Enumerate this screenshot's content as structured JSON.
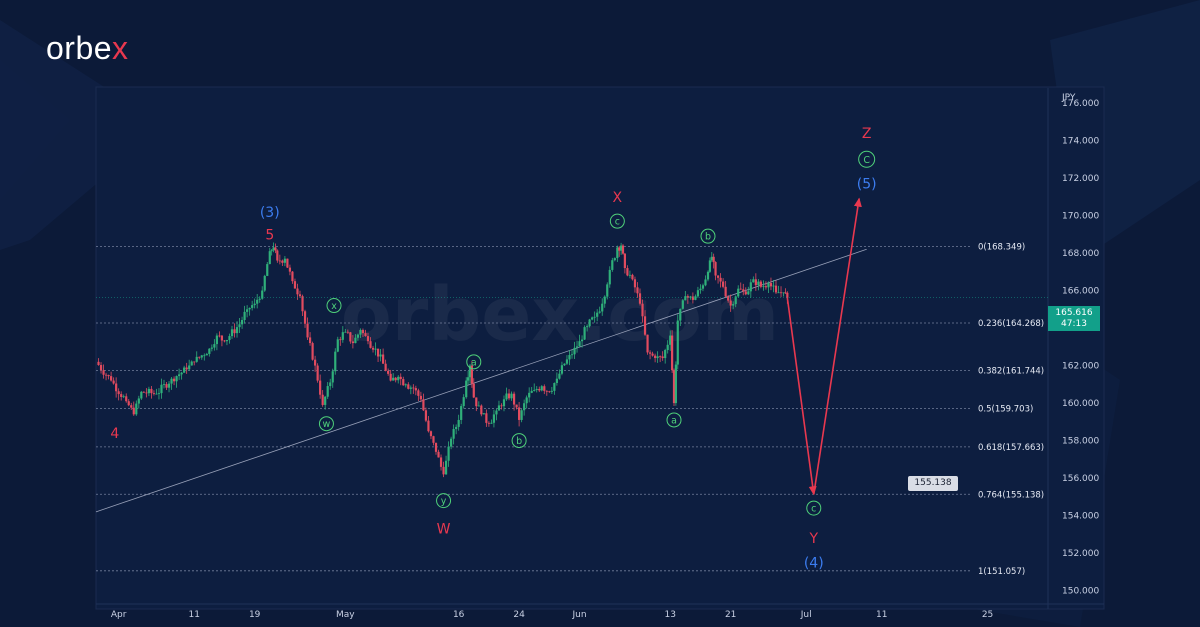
{
  "brand": {
    "logo_text_main": "orbe",
    "logo_text_accent": "x",
    "watermark": "orbex.com"
  },
  "colors": {
    "background": "#0c1a38",
    "chart_bg": "#0d1e40",
    "bull_candle": "#2fb07a",
    "bear_candle": "#e24b5f",
    "wave_red": "#e8384f",
    "wave_blue": "#3c7df0",
    "wave_green": "#4fd17a",
    "arrow": "#e8384f",
    "price_badge": "#12a08a"
  },
  "price_badge": {
    "price": "165.616",
    "countdown": "47:13"
  },
  "target_label": "155.138",
  "chart_data": {
    "type": "line",
    "instrument_axis_label": "JPY",
    "y_ticks": [
      "176.000",
      "174.000",
      "172.000",
      "170.000",
      "168.000",
      "166.000",
      "164.000",
      "162.000",
      "160.000",
      "158.000",
      "156.000",
      "154.000",
      "152.000",
      "150.000"
    ],
    "ylim": [
      149.5,
      176.8
    ],
    "x_ticks": [
      {
        "label": "Apr",
        "day": 0
      },
      {
        "label": "11",
        "day": 10
      },
      {
        "label": "19",
        "day": 18
      },
      {
        "label": "May",
        "day": 30
      },
      {
        "label": "16",
        "day": 45
      },
      {
        "label": "24",
        "day": 53
      },
      {
        "label": "Jun",
        "day": 61
      },
      {
        "label": "13",
        "day": 73
      },
      {
        "label": "21",
        "day": 81
      },
      {
        "label": "Jul",
        "day": 91
      },
      {
        "label": "11",
        "day": 101
      },
      {
        "label": "25",
        "day": 115
      }
    ],
    "xlim": [
      -3,
      123
    ],
    "price_path": [
      [
        -3,
        162.2
      ],
      [
        -1,
        161.2
      ],
      [
        1,
        160.1
      ],
      [
        2,
        159.4
      ],
      [
        3,
        160.6
      ],
      [
        5,
        160.5
      ],
      [
        7,
        161.3
      ],
      [
        9,
        161.8
      ],
      [
        10,
        162.2
      ],
      [
        12,
        162.9
      ],
      [
        13,
        163.6
      ],
      [
        14,
        163.3
      ],
      [
        16,
        164.2
      ],
      [
        17,
        165.0
      ],
      [
        18,
        165.3
      ],
      [
        19,
        166.0
      ],
      [
        20,
        168.1
      ],
      [
        20.5,
        168.3
      ],
      [
        21,
        167.6
      ],
      [
        22,
        167.7
      ],
      [
        23,
        166.5
      ],
      [
        24,
        165.7
      ],
      [
        25,
        163.5
      ],
      [
        26,
        162.0
      ],
      [
        27,
        159.9
      ],
      [
        28,
        161.1
      ],
      [
        29,
        163.4
      ],
      [
        30,
        163.8
      ],
      [
        31,
        163.2
      ],
      [
        32,
        163.9
      ],
      [
        33,
        163.3
      ],
      [
        34,
        162.9
      ],
      [
        35,
        162.1
      ],
      [
        36,
        161.2
      ],
      [
        37,
        161.4
      ],
      [
        38,
        161.0
      ],
      [
        39,
        160.8
      ],
      [
        40,
        160.2
      ],
      [
        41,
        158.5
      ],
      [
        42,
        157.4
      ],
      [
        43,
        156.2
      ],
      [
        44,
        158.1
      ],
      [
        45,
        159.1
      ],
      [
        46,
        161.2
      ],
      [
        46.5,
        162.0
      ],
      [
        47,
        160.3
      ],
      [
        48,
        159.4
      ],
      [
        49,
        158.9
      ],
      [
        50,
        159.6
      ],
      [
        51,
        160.2
      ],
      [
        52,
        160.5
      ],
      [
        53,
        159.1
      ],
      [
        54,
        160.3
      ],
      [
        55,
        160.7
      ],
      [
        56,
        160.9
      ],
      [
        57,
        160.6
      ],
      [
        58,
        161.3
      ],
      [
        59,
        162.1
      ],
      [
        60,
        162.6
      ],
      [
        61,
        163.3
      ],
      [
        62,
        164.1
      ],
      [
        63,
        164.6
      ],
      [
        64,
        165.3
      ],
      [
        65,
        167.1
      ],
      [
        66,
        168.3
      ],
      [
        66.5,
        168.4
      ],
      [
        67,
        167.2
      ],
      [
        68,
        166.6
      ],
      [
        69,
        165.3
      ],
      [
        70,
        162.7
      ],
      [
        71,
        162.4
      ],
      [
        72,
        162.4
      ],
      [
        73,
        163.6
      ],
      [
        73.5,
        160.0
      ],
      [
        74,
        164.4
      ],
      [
        75,
        165.7
      ],
      [
        76,
        165.5
      ],
      [
        77,
        166.1
      ],
      [
        78,
        167.0
      ],
      [
        78.5,
        167.8
      ],
      [
        79,
        166.8
      ],
      [
        80,
        166.2
      ],
      [
        81,
        165.2
      ],
      [
        82,
        166.1
      ],
      [
        83,
        165.8
      ],
      [
        84,
        166.6
      ],
      [
        85,
        166.2
      ],
      [
        86,
        166.4
      ],
      [
        87,
        165.9
      ],
      [
        88,
        165.9
      ],
      [
        88.5,
        165.616
      ]
    ],
    "projection_path": [
      [
        88.5,
        165.616
      ],
      [
        92,
        155.138
      ],
      [
        98,
        170.9
      ]
    ],
    "trendline": {
      "from": [
        -3,
        154.2
      ],
      "to": [
        99,
        168.2
      ]
    },
    "fib_levels": [
      {
        "label": "0(168.349)",
        "value": 168.349
      },
      {
        "label": "0.236(164.268)",
        "value": 164.268
      },
      {
        "label": "0.382(161.744)",
        "value": 161.744
      },
      {
        "label": "0.5(159.703)",
        "value": 159.703
      },
      {
        "label": "0.618(157.663)",
        "value": 157.663
      },
      {
        "label": "0.764(155.138)",
        "value": 155.138
      },
      {
        "label": "1(151.057)",
        "value": 151.057
      }
    ],
    "wave_labels": [
      {
        "text": "(3)",
        "day": 20,
        "price": 170.2,
        "color": "blue",
        "style": "plain"
      },
      {
        "text": "5",
        "day": 20,
        "price": 169.0,
        "color": "red",
        "style": "plain"
      },
      {
        "text": "4",
        "day": -0.5,
        "price": 158.4,
        "color": "red",
        "style": "plain"
      },
      {
        "text": "x",
        "day": 28.5,
        "price": 165.2,
        "color": "green",
        "style": "circle"
      },
      {
        "text": "w",
        "day": 27.5,
        "price": 158.9,
        "color": "green",
        "style": "circle"
      },
      {
        "text": "y",
        "day": 43,
        "price": 154.8,
        "color": "green",
        "style": "circle"
      },
      {
        "text": "W",
        "day": 43,
        "price": 153.3,
        "color": "red",
        "style": "plain"
      },
      {
        "text": "a",
        "day": 47,
        "price": 162.2,
        "color": "green",
        "style": "circle"
      },
      {
        "text": "b",
        "day": 53,
        "price": 158.0,
        "color": "green",
        "style": "circle"
      },
      {
        "text": "X",
        "day": 66,
        "price": 171.0,
        "color": "red",
        "style": "plain"
      },
      {
        "text": "c",
        "day": 66,
        "price": 169.7,
        "color": "green",
        "style": "circle"
      },
      {
        "text": "b",
        "day": 78,
        "price": 168.9,
        "color": "green",
        "style": "circle"
      },
      {
        "text": "a",
        "day": 73.5,
        "price": 159.1,
        "color": "green",
        "style": "circle"
      },
      {
        "text": "c",
        "day": 92,
        "price": 154.4,
        "color": "green",
        "style": "circle"
      },
      {
        "text": "Y",
        "day": 92,
        "price": 152.8,
        "color": "red",
        "style": "plain"
      },
      {
        "text": "(4)",
        "day": 92,
        "price": 151.5,
        "color": "blue",
        "style": "plain"
      },
      {
        "text": "Z",
        "day": 99,
        "price": 174.4,
        "color": "red",
        "style": "plain"
      },
      {
        "text": "C",
        "day": 99,
        "price": 173.0,
        "color": "green",
        "style": "circle"
      },
      {
        "text": "(5)",
        "day": 99,
        "price": 171.7,
        "color": "blue",
        "style": "plain"
      }
    ]
  }
}
